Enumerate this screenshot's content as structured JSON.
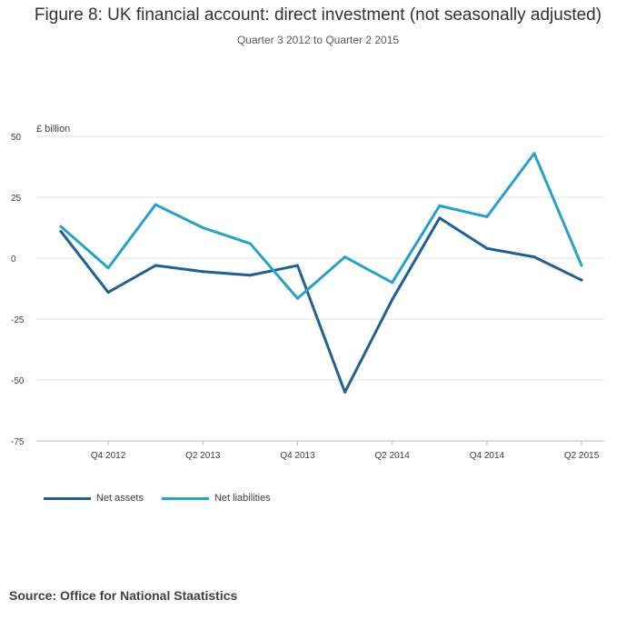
{
  "title": "Figure 8: UK financial account: direct investment (not seasonally adjusted)",
  "subtitle": "Quarter 3 2012 to Quarter 2 2015",
  "source": "Source: Office for National Staatistics",
  "chart_data": {
    "type": "line",
    "ylabel": "£ billion",
    "xlabel": "",
    "ylim": [
      -75,
      50
    ],
    "yticks": [
      50,
      25,
      0,
      -25,
      -50,
      -75
    ],
    "grid": true,
    "legend_position": "bottom-left",
    "x": [
      "Q3 2012",
      "Q4 2012",
      "Q1 2013",
      "Q2 2013",
      "Q3 2013",
      "Q4 2013",
      "Q1 2014",
      "Q2 2014",
      "Q3 2014",
      "Q4 2014",
      "Q1 2015",
      "Q2 2015"
    ],
    "xtick_labels": [
      "Q4 2012",
      "Q2 2013",
      "Q4 2013",
      "Q2 2014",
      "Q4 2014",
      "Q2 2015"
    ],
    "series": [
      {
        "name": "Net assets",
        "color": "#206095",
        "values": [
          11,
          -14,
          -3,
          -5.5,
          -7,
          -3,
          -55,
          -17,
          16.5,
          4,
          0.5,
          -9
        ]
      },
      {
        "name": "Net liabilities",
        "color": "#27a0cc",
        "values": [
          13,
          -4,
          22,
          12.5,
          6,
          -16.5,
          0.5,
          -10,
          21.5,
          17,
          43,
          -3
        ]
      }
    ]
  }
}
